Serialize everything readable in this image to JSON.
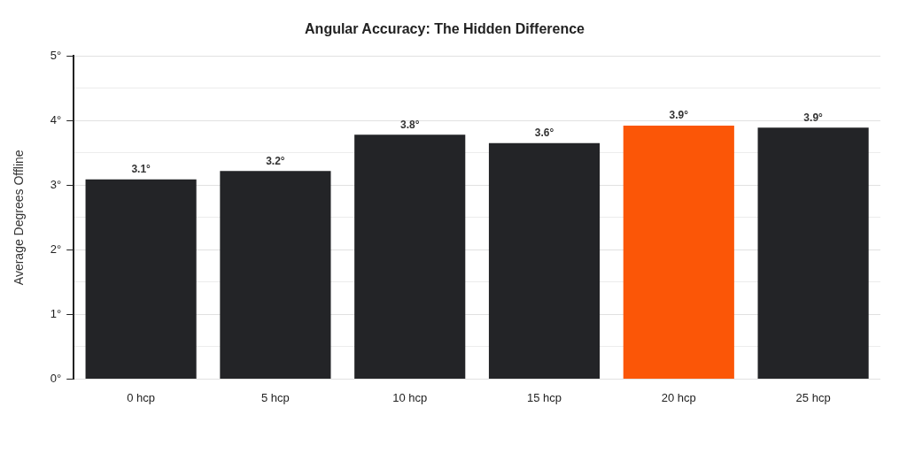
{
  "chart_data": {
    "type": "bar",
    "title": "Angular Accuracy: The Hidden Difference",
    "ylabel": "Average Degrees Offline",
    "categories": [
      "0 hcp",
      "5 hcp",
      "10 hcp",
      "15 hcp",
      "20 hcp",
      "25 hcp"
    ],
    "values": [
      3.09,
      3.22,
      3.78,
      3.65,
      3.92,
      3.89
    ],
    "colors": [
      "#232427",
      "#232427",
      "#232427",
      "#232427",
      "#fb5607",
      "#232427"
    ],
    "value_labels": [
      "3.1°",
      "3.2°",
      "3.8°",
      "3.6°",
      "3.9°",
      "3.9°"
    ],
    "ylim": [
      0,
      5
    ],
    "yticks": [
      {
        "value": 0,
        "label": "0°"
      },
      {
        "value": 0.5,
        "label": null
      },
      {
        "value": 1,
        "label": "1°"
      },
      {
        "value": 1.5,
        "label": null
      },
      {
        "value": 2,
        "label": "2°"
      },
      {
        "value": 2.5,
        "label": null
      },
      {
        "value": 3,
        "label": "3°"
      },
      {
        "value": 3.5,
        "label": null
      },
      {
        "value": 4,
        "label": "4°"
      },
      {
        "value": 4.5,
        "label": null
      },
      {
        "value": 5,
        "label": "5°"
      }
    ],
    "grid": "y",
    "legend": false
  }
}
